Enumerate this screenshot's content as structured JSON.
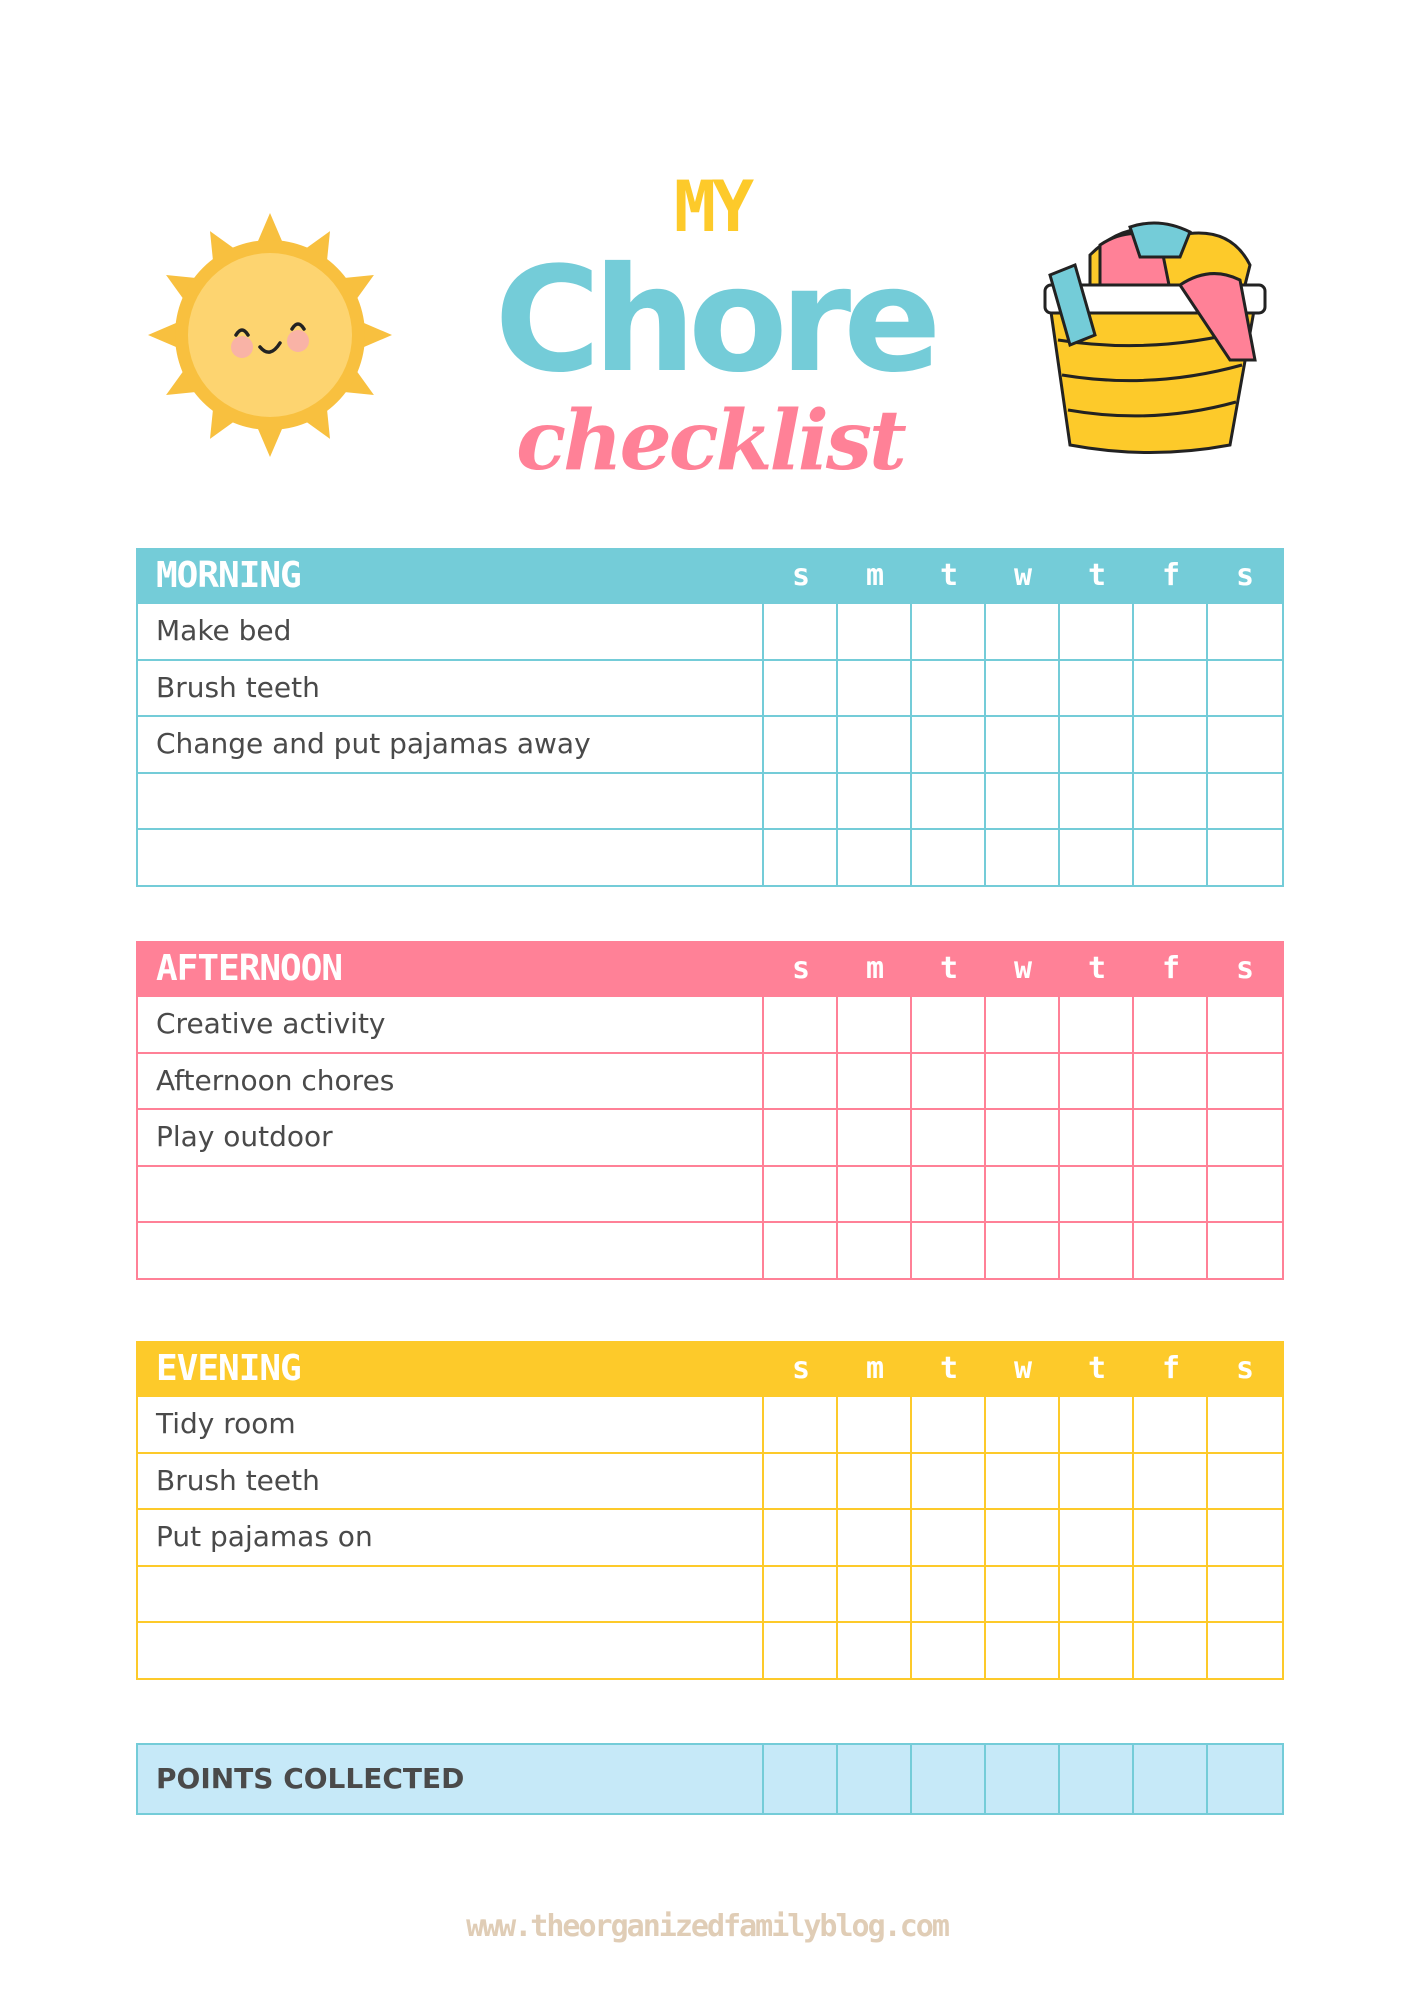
{
  "header": {
    "title_line1": "MY",
    "title_line2": "Chore",
    "title_line3": "checklist",
    "left_illustration": "sun-icon",
    "right_illustration": "laundry-basket-icon"
  },
  "days": [
    "s",
    "m",
    "t",
    "w",
    "t",
    "f",
    "s"
  ],
  "sections": [
    {
      "title": "MORNING",
      "color": "#74ccd8",
      "tasks": [
        "Make bed",
        "Brush teeth",
        "Change and put pajamas away",
        "",
        ""
      ]
    },
    {
      "title": "AFTERNOON",
      "color": "#ff8197",
      "tasks": [
        "Creative activity",
        "Afternoon chores",
        "Play outdoor",
        "",
        ""
      ]
    },
    {
      "title": "EVENING",
      "color": "#fdca2a",
      "tasks": [
        "Tidy room",
        "Brush teeth",
        "Put pajamas on",
        "",
        ""
      ]
    }
  ],
  "points": {
    "label": "POINTS COLLECTED",
    "background": "#c6e9f8"
  },
  "footer": {
    "website": "www.theorganizedfamilyblog.com",
    "color": "#e0cdb6"
  }
}
